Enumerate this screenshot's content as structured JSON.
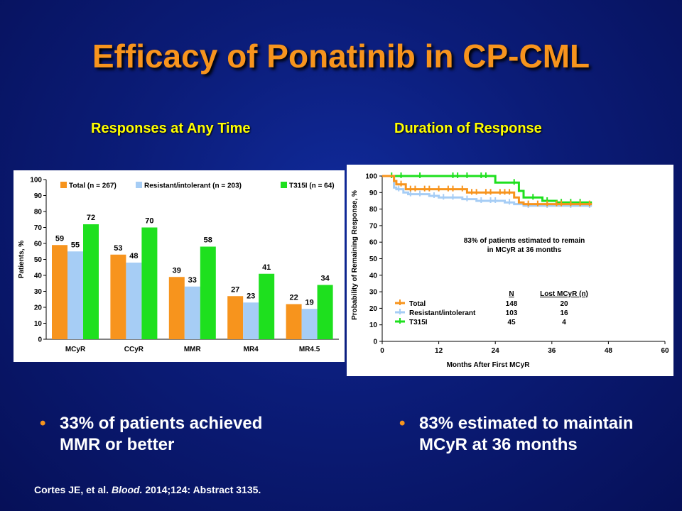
{
  "title": "Efficacy of Ponatinib in CP-CML",
  "bullets": {
    "left_line1": "33% of patients achieved",
    "left_line2": "MMR or better",
    "right_line1": "83% estimated to maintain",
    "right_line2": "MCyR at 36 months"
  },
  "citation": {
    "authors": "Cortes JE, et al. ",
    "journal": "Blood.",
    "rest": " 2014;124: Abstract 3135."
  },
  "chart_data": [
    {
      "type": "bar",
      "title": "Responses at Any Time",
      "ylabel": "Patients, %",
      "xlabel": "",
      "ylim": [
        0,
        100
      ],
      "yticks": [
        0,
        10,
        20,
        30,
        40,
        50,
        60,
        70,
        80,
        90,
        100
      ],
      "categories": [
        "MCyR",
        "CCyR",
        "MMR",
        "MR4",
        "MR4.5"
      ],
      "legend_position": "top",
      "series": [
        {
          "name": "Total (n = 267)",
          "color": "#f7941d",
          "values": [
            59,
            53,
            39,
            27,
            22
          ]
        },
        {
          "name": "Resistant/intolerant (n = 203)",
          "color": "#a6cdf5",
          "values": [
            55,
            48,
            33,
            23,
            19
          ]
        },
        {
          "name": "T315I (n = 64)",
          "color": "#1ee01e",
          "values": [
            72,
            70,
            58,
            41,
            34
          ]
        }
      ]
    },
    {
      "type": "line",
      "title": "Duration of Response",
      "xlabel": "Months After First MCyR",
      "ylabel": "Probability of Remaining Response, %",
      "xlim": [
        0,
        60
      ],
      "ylim": [
        0,
        100
      ],
      "xticks": [
        0,
        12,
        24,
        36,
        48,
        60
      ],
      "yticks": [
        0,
        10,
        20,
        30,
        40,
        50,
        60,
        70,
        80,
        90,
        100
      ],
      "annotation_line1": "83% of patients estimated to remain",
      "annotation_line2": "in MCyR at 36 months",
      "table_headers": {
        "n": "N",
        "lost": "Lost MCyR (n)"
      },
      "series": [
        {
          "name": "Total",
          "n": "148",
          "lost": "20",
          "color": "#f7941d",
          "points": [
            [
              0,
              100
            ],
            [
              2.5,
              100
            ],
            [
              2.5,
              97
            ],
            [
              3,
              97
            ],
            [
              3,
              95
            ],
            [
              5,
              95
            ],
            [
              5,
              92
            ],
            [
              18,
              92
            ],
            [
              18,
              90
            ],
            [
              28,
              90
            ],
            [
              28,
              87
            ],
            [
              29,
              87
            ],
            [
              29,
              84
            ],
            [
              30,
              84
            ],
            [
              30,
              83
            ],
            [
              44.5,
              83
            ]
          ],
          "censor": [
            4,
            6,
            7,
            9,
            10,
            12,
            14,
            15,
            17,
            19,
            20,
            22,
            23,
            25,
            26,
            27,
            31,
            33,
            35,
            37,
            38,
            40,
            42,
            44
          ]
        },
        {
          "name": "Resistant/intolerant",
          "n": "103",
          "lost": "16",
          "color": "#a6cdf5",
          "points": [
            [
              0,
              100
            ],
            [
              2.5,
              100
            ],
            [
              2.5,
              93
            ],
            [
              3,
              93
            ],
            [
              3,
              92
            ],
            [
              4.5,
              92
            ],
            [
              4.5,
              90
            ],
            [
              5.5,
              90
            ],
            [
              5.5,
              89
            ],
            [
              10,
              89
            ],
            [
              10,
              88
            ],
            [
              12,
              88
            ],
            [
              12,
              87
            ],
            [
              17,
              87
            ],
            [
              17,
              86
            ],
            [
              20,
              86
            ],
            [
              20,
              85
            ],
            [
              26,
              85
            ],
            [
              26,
              84
            ],
            [
              28,
              84
            ],
            [
              28,
              83
            ],
            [
              30,
              83
            ],
            [
              30,
              82
            ],
            [
              44.5,
              82
            ]
          ],
          "censor": [
            3.5,
            6,
            8,
            11,
            13,
            15,
            18,
            21,
            23,
            24,
            27,
            31,
            35,
            40,
            44
          ]
        },
        {
          "name": "T315I",
          "n": "45",
          "lost": "4",
          "color": "#1ee01e",
          "points": [
            [
              0,
              100
            ],
            [
              24,
              100
            ],
            [
              24,
              96
            ],
            [
              29,
              96
            ],
            [
              29,
              91
            ],
            [
              30,
              91
            ],
            [
              30,
              87
            ],
            [
              34,
              87
            ],
            [
              34,
              85
            ],
            [
              37,
              85
            ],
            [
              37,
              84
            ],
            [
              44.5,
              84
            ]
          ],
          "censor": [
            2,
            4,
            8,
            15,
            16,
            18,
            21,
            22,
            28,
            32,
            35,
            38,
            40,
            42
          ]
        }
      ]
    }
  ]
}
